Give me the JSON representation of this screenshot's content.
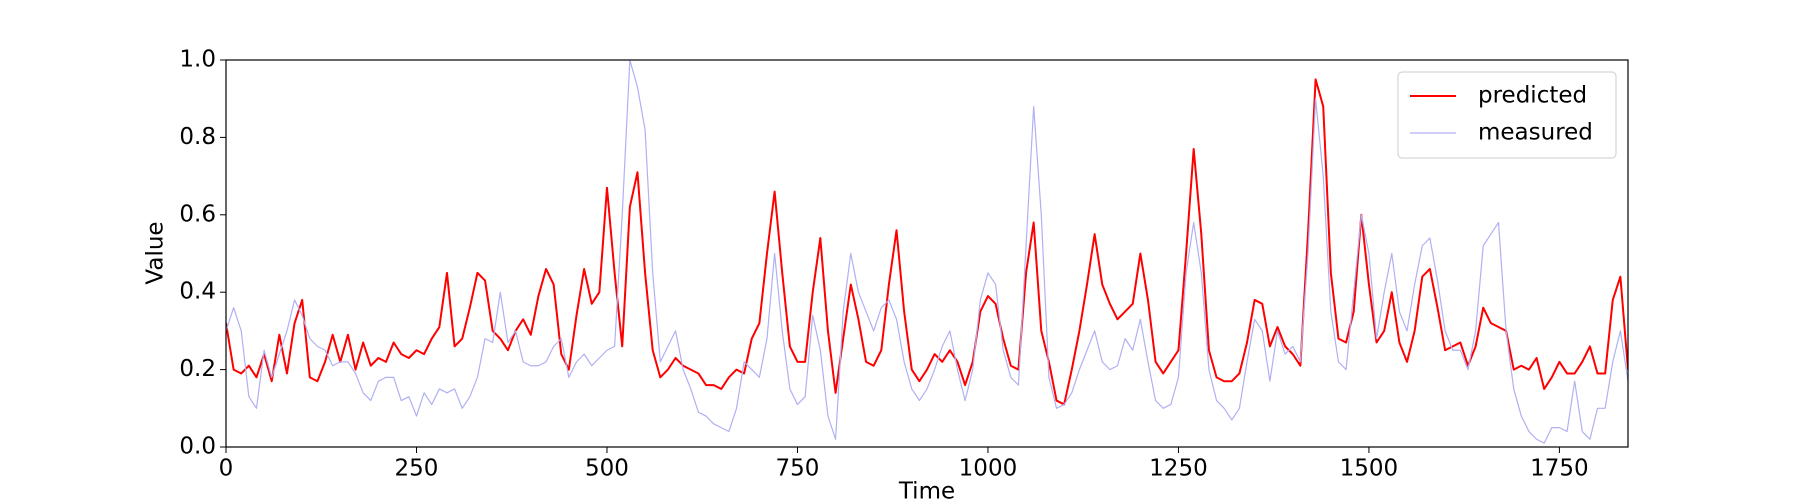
{
  "chart_data": {
    "type": "line",
    "x_label": "Time",
    "y_label": "Value",
    "x": [
      0,
      10,
      20,
      30,
      40,
      50,
      60,
      70,
      80,
      90,
      100,
      110,
      120,
      130,
      140,
      150,
      160,
      170,
      180,
      190,
      200,
      210,
      220,
      230,
      240,
      250,
      260,
      270,
      280,
      290,
      300,
      310,
      320,
      330,
      340,
      350,
      360,
      370,
      380,
      390,
      400,
      410,
      420,
      430,
      440,
      450,
      460,
      470,
      480,
      490,
      500,
      510,
      520,
      530,
      540,
      550,
      560,
      570,
      580,
      590,
      600,
      610,
      620,
      630,
      640,
      650,
      660,
      670,
      680,
      690,
      700,
      710,
      720,
      730,
      740,
      750,
      760,
      770,
      780,
      790,
      800,
      810,
      820,
      830,
      840,
      850,
      860,
      870,
      880,
      890,
      900,
      910,
      920,
      930,
      940,
      950,
      960,
      970,
      980,
      990,
      1000,
      1010,
      1020,
      1030,
      1040,
      1050,
      1060,
      1070,
      1080,
      1090,
      1100,
      1110,
      1120,
      1130,
      1140,
      1150,
      1160,
      1170,
      1180,
      1190,
      1200,
      1210,
      1220,
      1230,
      1240,
      1250,
      1260,
      1270,
      1280,
      1290,
      1300,
      1310,
      1320,
      1330,
      1340,
      1350,
      1360,
      1370,
      1380,
      1390,
      1400,
      1410,
      1420,
      1430,
      1440,
      1450,
      1460,
      1470,
      1480,
      1490,
      1500,
      1510,
      1520,
      1530,
      1540,
      1550,
      1560,
      1570,
      1580,
      1590,
      1600,
      1610,
      1620,
      1630,
      1640,
      1650,
      1660,
      1670,
      1680,
      1690,
      1700,
      1710,
      1720,
      1730,
      1740,
      1750,
      1760,
      1770,
      1780,
      1790,
      1800,
      1810,
      1820,
      1830,
      1840
    ],
    "series": [
      {
        "name": "predicted",
        "color": "#ff0000",
        "width": 2,
        "values": [
          0.32,
          0.2,
          0.19,
          0.21,
          0.18,
          0.24,
          0.17,
          0.29,
          0.19,
          0.32,
          0.38,
          0.18,
          0.17,
          0.22,
          0.29,
          0.22,
          0.29,
          0.2,
          0.27,
          0.21,
          0.23,
          0.22,
          0.27,
          0.24,
          0.23,
          0.25,
          0.24,
          0.28,
          0.31,
          0.45,
          0.26,
          0.28,
          0.36,
          0.45,
          0.43,
          0.3,
          0.28,
          0.25,
          0.3,
          0.33,
          0.29,
          0.39,
          0.46,
          0.42,
          0.24,
          0.2,
          0.34,
          0.46,
          0.37,
          0.4,
          0.67,
          0.45,
          0.26,
          0.62,
          0.71,
          0.45,
          0.25,
          0.18,
          0.2,
          0.23,
          0.21,
          0.2,
          0.19,
          0.16,
          0.16,
          0.15,
          0.18,
          0.2,
          0.19,
          0.28,
          0.32,
          0.5,
          0.66,
          0.45,
          0.26,
          0.22,
          0.22,
          0.4,
          0.54,
          0.3,
          0.14,
          0.28,
          0.42,
          0.33,
          0.22,
          0.21,
          0.25,
          0.42,
          0.56,
          0.35,
          0.2,
          0.17,
          0.2,
          0.24,
          0.22,
          0.25,
          0.22,
          0.16,
          0.22,
          0.35,
          0.39,
          0.37,
          0.28,
          0.21,
          0.2,
          0.45,
          0.58,
          0.3,
          0.22,
          0.12,
          0.11,
          0.2,
          0.3,
          0.42,
          0.55,
          0.42,
          0.37,
          0.33,
          0.35,
          0.37,
          0.5,
          0.38,
          0.22,
          0.19,
          0.22,
          0.25,
          0.5,
          0.77,
          0.55,
          0.25,
          0.18,
          0.17,
          0.17,
          0.19,
          0.27,
          0.38,
          0.37,
          0.26,
          0.31,
          0.26,
          0.24,
          0.21,
          0.55,
          0.95,
          0.88,
          0.45,
          0.28,
          0.27,
          0.35,
          0.6,
          0.42,
          0.27,
          0.3,
          0.4,
          0.27,
          0.22,
          0.3,
          0.44,
          0.46,
          0.36,
          0.25,
          0.26,
          0.27,
          0.21,
          0.26,
          0.36,
          0.32,
          0.31,
          0.3,
          0.2,
          0.21,
          0.2,
          0.23,
          0.15,
          0.18,
          0.22,
          0.19,
          0.19,
          0.22,
          0.26,
          0.19,
          0.19,
          0.38,
          0.44,
          0.2
        ]
      },
      {
        "name": "measured",
        "color": "#b0b0f4",
        "width": 1.2,
        "values": [
          0.3,
          0.36,
          0.3,
          0.13,
          0.1,
          0.25,
          0.18,
          0.24,
          0.3,
          0.38,
          0.34,
          0.28,
          0.26,
          0.25,
          0.21,
          0.22,
          0.22,
          0.19,
          0.14,
          0.12,
          0.17,
          0.18,
          0.18,
          0.12,
          0.13,
          0.08,
          0.14,
          0.11,
          0.15,
          0.14,
          0.15,
          0.1,
          0.13,
          0.18,
          0.28,
          0.27,
          0.4,
          0.27,
          0.3,
          0.22,
          0.21,
          0.21,
          0.22,
          0.26,
          0.28,
          0.18,
          0.22,
          0.24,
          0.21,
          0.23,
          0.25,
          0.26,
          0.6,
          1.0,
          0.93,
          0.82,
          0.45,
          0.22,
          0.26,
          0.3,
          0.2,
          0.15,
          0.09,
          0.08,
          0.06,
          0.05,
          0.04,
          0.1,
          0.22,
          0.2,
          0.18,
          0.28,
          0.5,
          0.3,
          0.15,
          0.11,
          0.13,
          0.34,
          0.25,
          0.08,
          0.02,
          0.35,
          0.5,
          0.4,
          0.35,
          0.3,
          0.36,
          0.38,
          0.33,
          0.22,
          0.15,
          0.12,
          0.15,
          0.2,
          0.26,
          0.3,
          0.2,
          0.12,
          0.2,
          0.38,
          0.45,
          0.42,
          0.25,
          0.18,
          0.16,
          0.52,
          0.88,
          0.6,
          0.18,
          0.1,
          0.11,
          0.14,
          0.2,
          0.25,
          0.3,
          0.22,
          0.2,
          0.21,
          0.28,
          0.25,
          0.33,
          0.22,
          0.12,
          0.1,
          0.11,
          0.18,
          0.45,
          0.58,
          0.45,
          0.2,
          0.12,
          0.1,
          0.07,
          0.1,
          0.22,
          0.33,
          0.3,
          0.17,
          0.3,
          0.24,
          0.26,
          0.22,
          0.5,
          0.9,
          0.7,
          0.35,
          0.22,
          0.2,
          0.4,
          0.6,
          0.5,
          0.28,
          0.4,
          0.5,
          0.35,
          0.3,
          0.42,
          0.52,
          0.54,
          0.43,
          0.3,
          0.25,
          0.25,
          0.2,
          0.3,
          0.52,
          0.55,
          0.58,
          0.3,
          0.15,
          0.08,
          0.04,
          0.02,
          0.01,
          0.05,
          0.05,
          0.04,
          0.17,
          0.04,
          0.02,
          0.1,
          0.1,
          0.22,
          0.3,
          0.17
        ]
      }
    ],
    "xlim": [
      0,
      1840
    ],
    "ylim": [
      0,
      1.0
    ],
    "xticks": [
      0,
      250,
      500,
      750,
      1000,
      1250,
      1500,
      1750
    ],
    "yticks": [
      {
        "value": 0,
        "label": "0.0"
      },
      {
        "value": 0.2,
        "label": "0.2"
      },
      {
        "value": 0.4,
        "label": "0.4"
      },
      {
        "value": 0.6,
        "label": "0.6"
      },
      {
        "value": 0.8,
        "label": "0.8"
      },
      {
        "value": 1.0,
        "label": "1.0"
      }
    ],
    "legend": "upper right"
  }
}
